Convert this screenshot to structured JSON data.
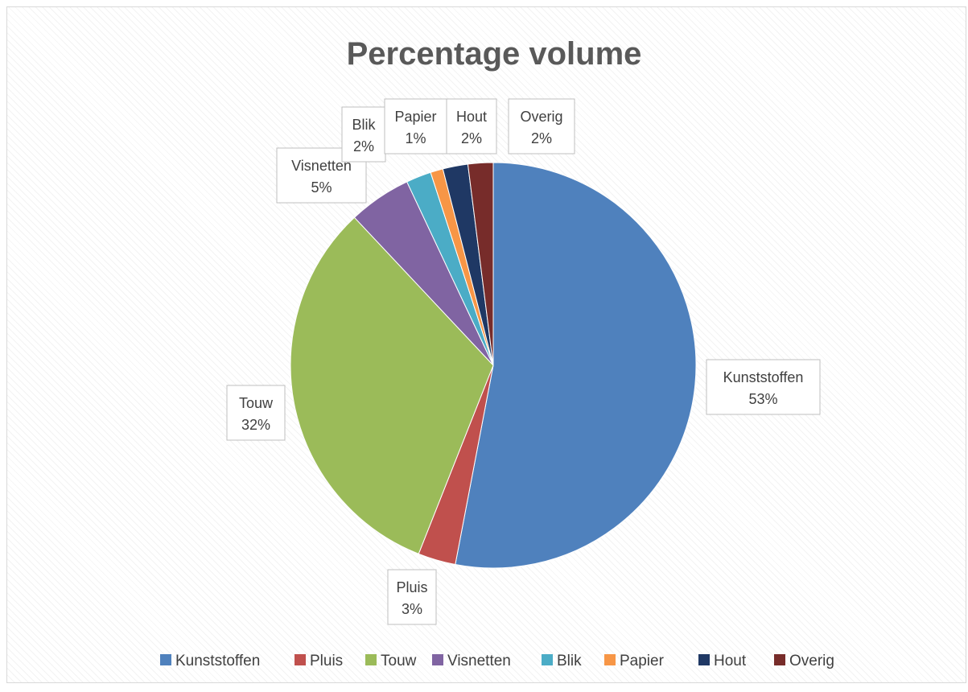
{
  "chart_data": {
    "type": "pie",
    "title": "Percentage volume",
    "categories": [
      "Kunststoffen",
      "Pluis",
      "Touw",
      "Visnetten",
      "Blik",
      "Papier",
      "Hout",
      "Overig"
    ],
    "values": [
      53,
      3,
      32,
      5,
      2,
      1,
      2,
      2
    ],
    "data_labels": [
      "53%",
      "3%",
      "32%",
      "5%",
      "2%",
      "1%",
      "2%",
      "2%"
    ],
    "colors": [
      "#4f81bd",
      "#c0504d",
      "#9bbb59",
      "#8064a2",
      "#4bacc6",
      "#f79646",
      "#1f3864",
      "#772c2a"
    ],
    "start_angle_deg": 0,
    "direction": "clockwise",
    "legend_position": "bottom",
    "show_category_in_label": true,
    "show_percent_in_label": true
  }
}
